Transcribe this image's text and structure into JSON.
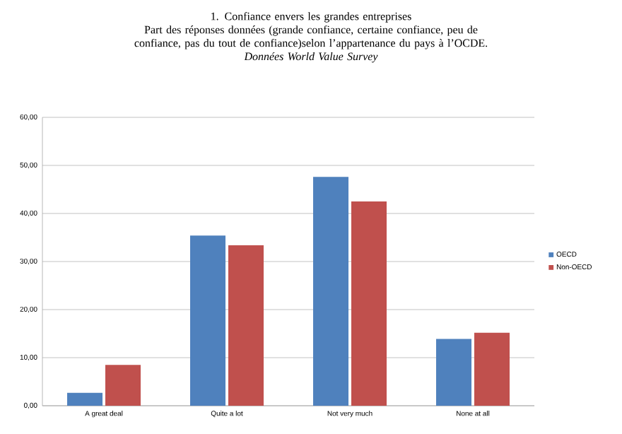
{
  "chart_data": {
    "type": "bar",
    "title": "1. Confiance envers les grandes entreprises",
    "subtitle": "Part des réponses données (grande confiance, certaine confiance, peu de confiance, pas du tout de confiance)selon l’appartenance du pays à l’OCDE.",
    "annotations": [
      "*Données World Value Survey*"
    ],
    "categories": [
      "A great deal",
      "Quite a lot",
      "Not very much",
      "None at all"
    ],
    "series": [
      {
        "name": "OECD",
        "color": "#4f81bd",
        "values": [
          2.7,
          35.4,
          47.6,
          13.9
        ]
      },
      {
        "name": "Non-OECD",
        "color": "#c0504d",
        "values": [
          8.5,
          33.4,
          42.5,
          15.2
        ]
      }
    ],
    "ylim": [
      0,
      60
    ],
    "yticks": [
      {
        "value": 0,
        "label": "0,00"
      },
      {
        "value": 10,
        "label": "10,00"
      },
      {
        "value": 20,
        "label": "20,00"
      },
      {
        "value": 30,
        "label": "30,00"
      },
      {
        "value": 40,
        "label": "40,00"
      },
      {
        "value": 50,
        "label": "50,00"
      },
      {
        "value": 60,
        "label": "60,00"
      }
    ],
    "grid": "y",
    "legend": "right"
  }
}
